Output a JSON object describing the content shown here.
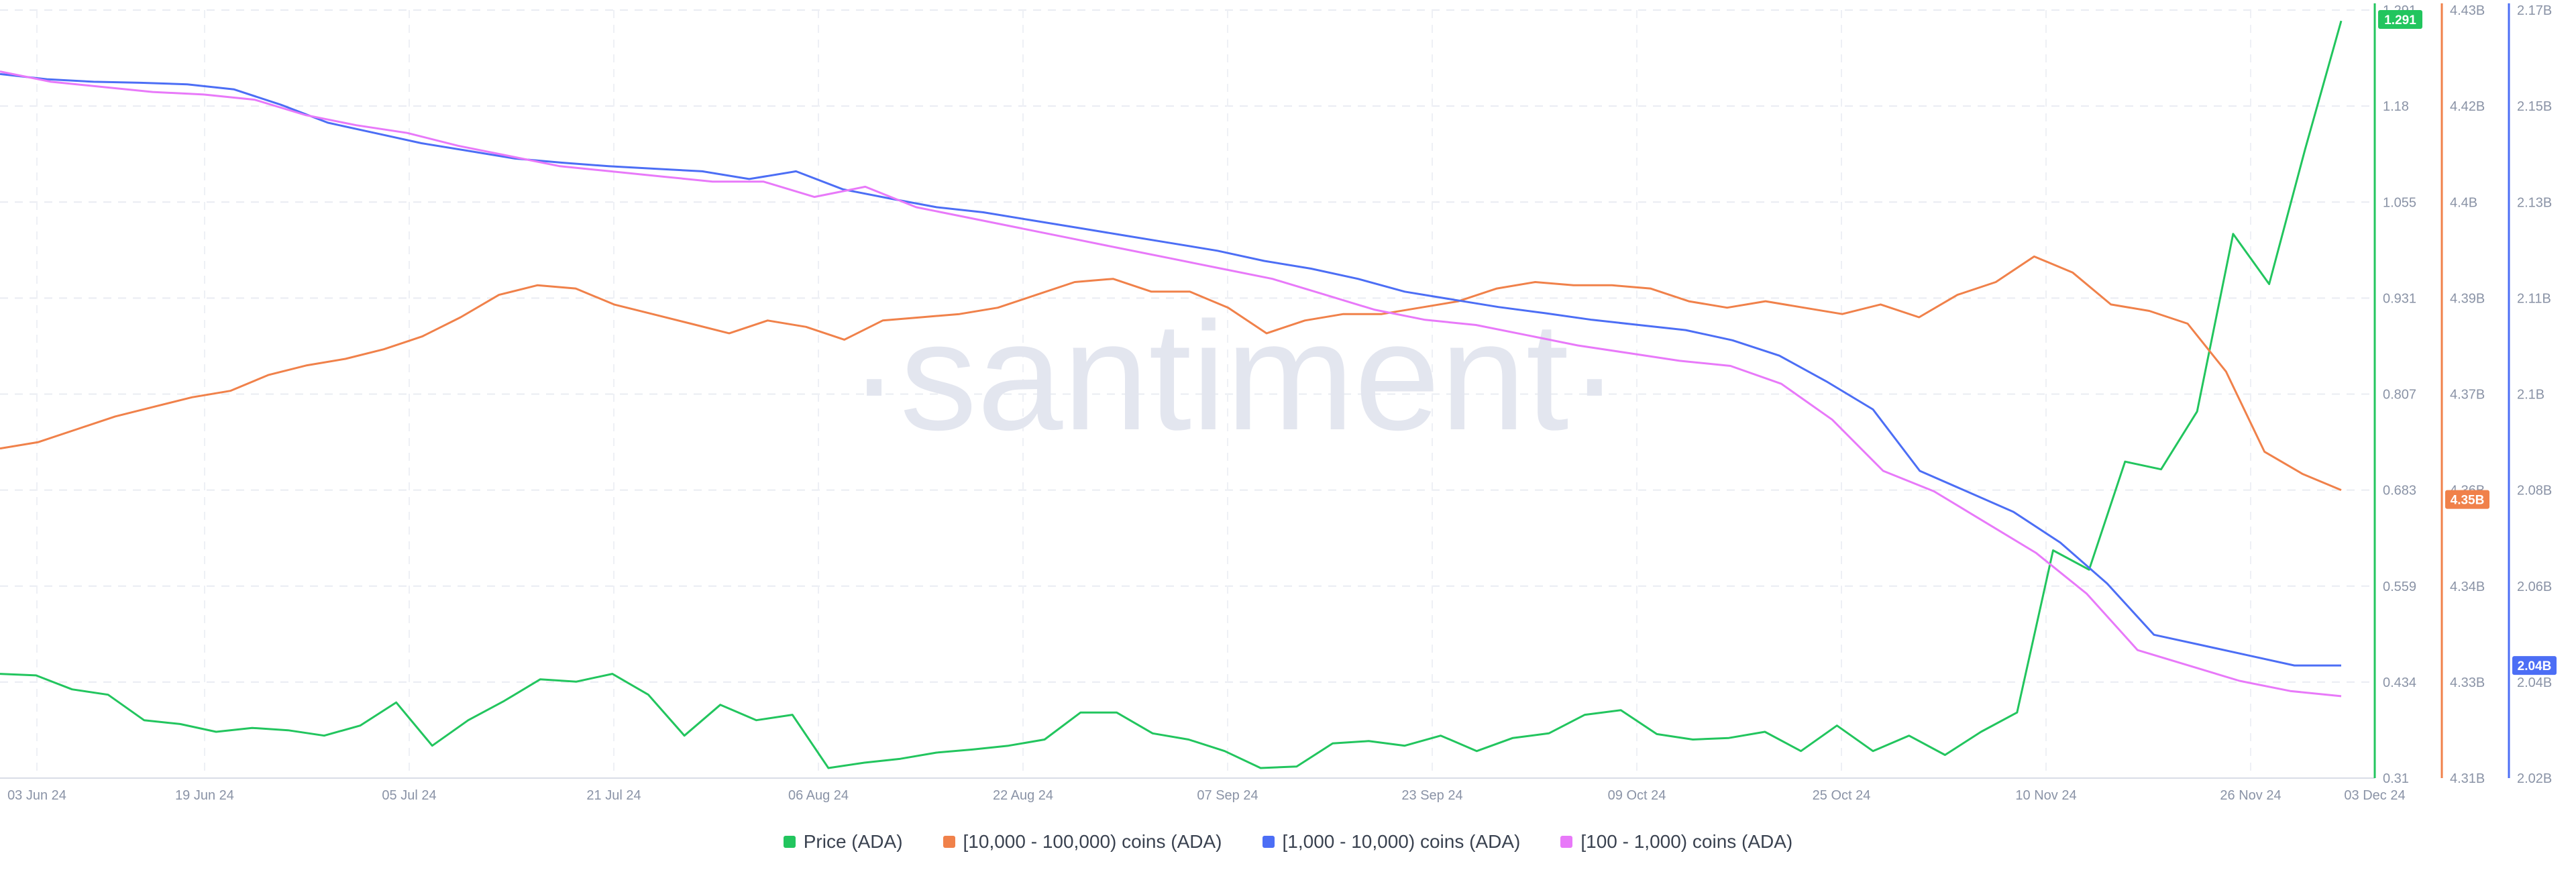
{
  "watermark": "·santiment·",
  "chart_data": {
    "type": "line",
    "x_ticks": [
      "03 Jun 24",
      "19 Jun 24",
      "05 Jul 24",
      "21 Jul 24",
      "06 Aug 24",
      "22 Aug 24",
      "07 Sep 24",
      "23 Sep 24",
      "09 Oct 24",
      "25 Oct 24",
      "10 Nov 24",
      "26 Nov 24",
      "03 Dec 24"
    ],
    "axes": [
      {
        "id": "price",
        "color": "#22c55e",
        "ticks": [
          "1.291",
          "1.18",
          "1.055",
          "0.931",
          "0.807",
          "0.683",
          "0.559",
          "0.434",
          "0.31"
        ],
        "ylim": [
          0.31,
          1.305
        ],
        "badge": "1.291"
      },
      {
        "id": "h10k",
        "color": "#f0814a",
        "ticks": [
          "4.43B",
          "4.42B",
          "4.4B",
          "4.39B",
          "4.37B",
          "4.36B",
          "4.34B",
          "4.33B",
          "4.31B"
        ],
        "ylim": [
          4.31,
          4.43
        ],
        "badge": "4.35B"
      },
      {
        "id": "h1k",
        "color": "#4c6ef5",
        "ticks": [
          "2.17B",
          "2.15B",
          "2.13B",
          "2.11B",
          "2.1B",
          "2.08B",
          "2.06B",
          "2.04B",
          "2.02B"
        ],
        "ylim": [
          2.02,
          2.17
        ],
        "badge": "2.04B"
      }
    ],
    "series": [
      {
        "name": "Price (ADA)",
        "color": "#22c55e",
        "axis": "price",
        "values": [
          0.445,
          0.443,
          0.425,
          0.418,
          0.385,
          0.38,
          0.37,
          0.375,
          0.372,
          0.365,
          0.378,
          0.408,
          0.352,
          0.385,
          0.41,
          0.438,
          0.435,
          0.445,
          0.418,
          0.365,
          0.405,
          0.385,
          0.392,
          0.323,
          0.33,
          0.335,
          0.343,
          0.347,
          0.352,
          0.36,
          0.395,
          0.395,
          0.368,
          0.36,
          0.345,
          0.323,
          0.325,
          0.355,
          0.358,
          0.352,
          0.365,
          0.345,
          0.362,
          0.368,
          0.392,
          0.398,
          0.367,
          0.36,
          0.362,
          0.37,
          0.345,
          0.378,
          0.345,
          0.365,
          0.34,
          0.37,
          0.395,
          0.605,
          0.58,
          0.72,
          0.71,
          0.785,
          1.015,
          0.95,
          1.125,
          1.291
        ]
      },
      {
        "name": "[10,000 - 100,000) coins (ADA)",
        "color": "#f0814a",
        "axis": "h10k",
        "values": [
          4.3615,
          4.3625,
          4.3645,
          4.3665,
          4.368,
          4.3695,
          4.3705,
          4.373,
          4.3745,
          4.3755,
          4.377,
          4.379,
          4.382,
          4.3855,
          4.387,
          4.3865,
          4.384,
          4.3825,
          4.381,
          4.3795,
          4.3815,
          4.3805,
          4.3785,
          4.3815,
          4.382,
          4.3825,
          4.3835,
          4.3855,
          4.3875,
          4.388,
          4.386,
          4.386,
          4.3835,
          4.3795,
          4.3815,
          4.3825,
          4.3825,
          4.3835,
          4.3845,
          4.3865,
          4.3875,
          4.387,
          4.387,
          4.3865,
          4.3845,
          4.3835,
          4.3845,
          4.3835,
          4.3825,
          4.384,
          4.382,
          4.3855,
          4.3875,
          4.3915,
          4.389,
          4.384,
          4.383,
          4.381,
          4.3735,
          4.361,
          4.3575,
          4.355
        ]
      },
      {
        "name": "[1,000 - 10,000) coins (ADA)",
        "color": "#4c6ef5",
        "axis": "h1k",
        "values": [
          2.1575,
          2.1565,
          2.156,
          2.1558,
          2.1555,
          2.1545,
          2.1515,
          2.148,
          2.146,
          2.144,
          2.1425,
          2.141,
          2.1402,
          2.1395,
          2.139,
          2.1385,
          2.137,
          2.1385,
          2.135,
          2.1332,
          2.1315,
          2.1305,
          2.129,
          2.1275,
          2.126,
          2.1245,
          2.123,
          2.121,
          2.1195,
          2.1175,
          2.115,
          2.1135,
          2.112,
          2.1108,
          2.1095,
          2.1085,
          2.1075,
          2.1055,
          2.1025,
          2.0975,
          2.092,
          2.08,
          2.076,
          2.072,
          2.066,
          2.058,
          2.048,
          2.046,
          2.044,
          2.042,
          2.042
        ]
      },
      {
        "name": "[100 - 1,000) coins (ADA)",
        "color": "#e879f9",
        "axis": "h1k",
        "values": [
          2.158,
          2.156,
          2.155,
          2.154,
          2.1535,
          2.1525,
          2.1495,
          2.1475,
          2.146,
          2.1435,
          2.1415,
          2.1395,
          2.1385,
          2.1375,
          2.1365,
          2.1365,
          2.1335,
          2.1355,
          2.1315,
          2.1295,
          2.1275,
          2.1255,
          2.1235,
          2.1215,
          2.1195,
          2.1175,
          2.1145,
          2.1115,
          2.1095,
          2.1085,
          2.1065,
          2.1045,
          2.103,
          2.1015,
          2.1005,
          2.097,
          2.09,
          2.08,
          2.076,
          2.07,
          2.064,
          2.056,
          2.045,
          2.042,
          2.039,
          2.037,
          2.036
        ]
      }
    ],
    "grid": true,
    "legend": "bottom-center"
  }
}
